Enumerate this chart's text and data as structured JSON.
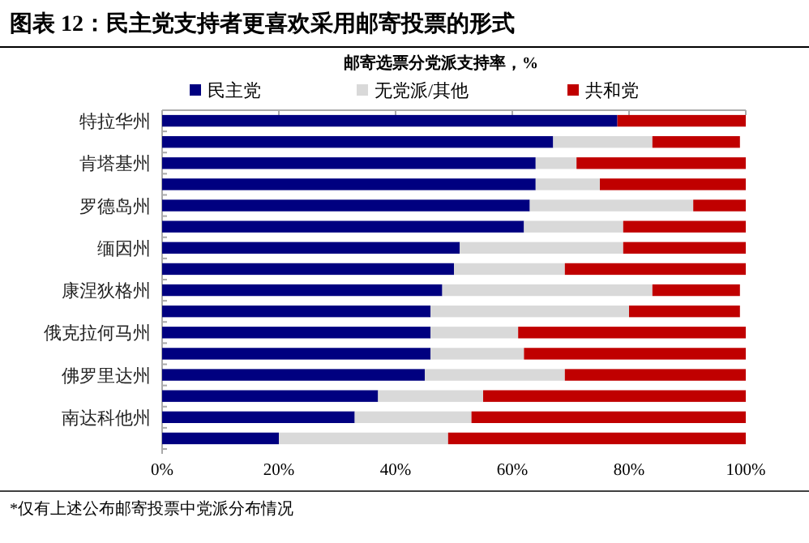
{
  "chart_data": {
    "type": "bar",
    "orientation": "horizontal",
    "stacked": true,
    "title": "图表 12：民主党支持者更喜欢采用邮寄投票的形式",
    "subtitle": "邮寄选票分党派支持率，%",
    "categories": [
      "特拉华州",
      null,
      "肯塔基州",
      null,
      "罗德岛州",
      null,
      "缅因州",
      null,
      "康涅狄格州",
      null,
      "俄克拉何马州",
      null,
      "佛罗里达州",
      null,
      "南达科他州",
      null
    ],
    "series": [
      {
        "name": "民主党",
        "color": "#000080",
        "values": [
          78,
          67,
          64,
          64,
          63,
          62,
          51,
          50,
          48,
          46,
          46,
          46,
          45,
          37,
          33,
          20
        ]
      },
      {
        "name": "无党派/其他",
        "color": "#d9d9d9",
        "values": [
          0,
          17,
          7,
          11,
          28,
          17,
          28,
          19,
          36,
          34,
          15,
          16,
          24,
          18,
          20,
          29
        ]
      },
      {
        "name": "共和党",
        "color": "#c00000",
        "values": [
          22,
          15,
          29,
          25,
          9,
          21,
          21,
          31,
          15,
          19,
          39,
          38,
          31,
          45,
          47,
          51
        ]
      }
    ],
    "xlim": [
      0,
      100
    ],
    "xticks": [
      {
        "value": 0,
        "label": "0%"
      },
      {
        "value": 20,
        "label": "20%"
      },
      {
        "value": 40,
        "label": "40%"
      },
      {
        "value": 60,
        "label": "60%"
      },
      {
        "value": 80,
        "label": "80%"
      },
      {
        "value": 100,
        "label": "100%"
      }
    ],
    "legend": "top",
    "annotations": [
      "*仅有上述公布邮寄投票中党派分布情况"
    ]
  }
}
